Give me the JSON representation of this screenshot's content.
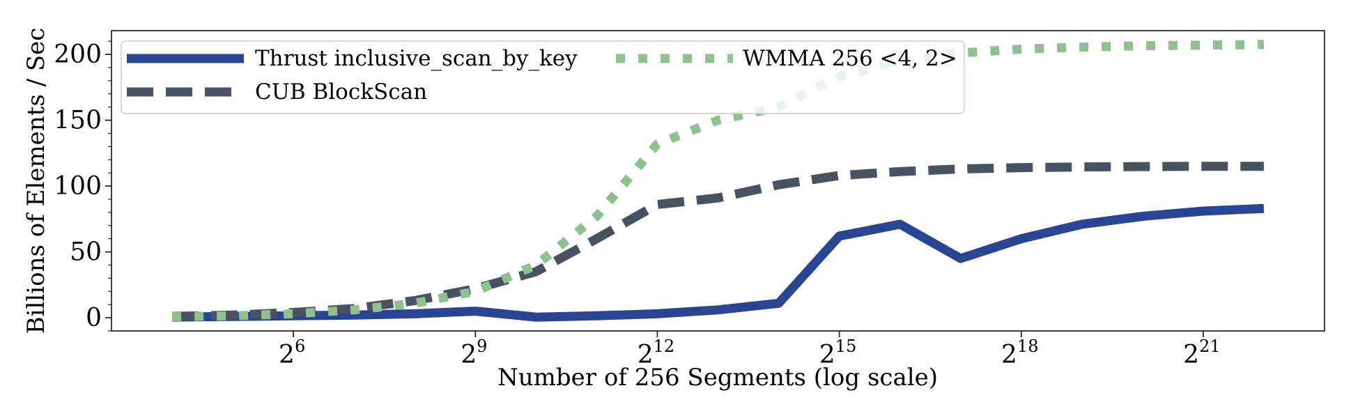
{
  "chart_data": {
    "type": "line",
    "xlabel": "Number of 256 Segments (log scale)",
    "ylabel": "Billions of Elements / Sec",
    "xscale": "log2",
    "x_tick_base": "2",
    "x_tick_exponents": [
      "6",
      "9",
      "12",
      "15",
      "18",
      "21"
    ],
    "y_ticks": [
      "0",
      "50",
      "100",
      "150",
      "200"
    ],
    "xlim": [
      8,
      8388608
    ],
    "ylim": [
      -10,
      218
    ],
    "grid": false,
    "legend": {
      "location": "top-left",
      "columns": 2
    },
    "x": [
      16,
      32,
      64,
      128,
      256,
      512,
      1024,
      2048,
      4096,
      8192,
      16384,
      32768,
      65536,
      131072,
      262144,
      524288,
      1048576,
      2097152,
      4194304
    ],
    "series": [
      {
        "name": "Thrust inclusive_scan_by_key",
        "style": "solid",
        "color": "#2a4494",
        "values": [
          0.5,
          1,
          1.5,
          2,
          3,
          5,
          0.5,
          1.5,
          3,
          6,
          11,
          62,
          71,
          45,
          60,
          71,
          77,
          81,
          83
        ]
      },
      {
        "name": "CUB BlockScan",
        "style": "dashed",
        "color": "#475361",
        "values": [
          1,
          2,
          4,
          7,
          13,
          22,
          35,
          60,
          86,
          91,
          101,
          108,
          111,
          113,
          114,
          114.5,
          114.8,
          115,
          115
        ]
      },
      {
        "name": "WMMA 256 <4, 2>",
        "style": "dotted",
        "color": "#8fc18f",
        "values": [
          0.8,
          1.5,
          3,
          6,
          11,
          20,
          40,
          77,
          132,
          150,
          160,
          183,
          195,
          201,
          204,
          205.5,
          206.5,
          207,
          207.5
        ]
      }
    ]
  }
}
